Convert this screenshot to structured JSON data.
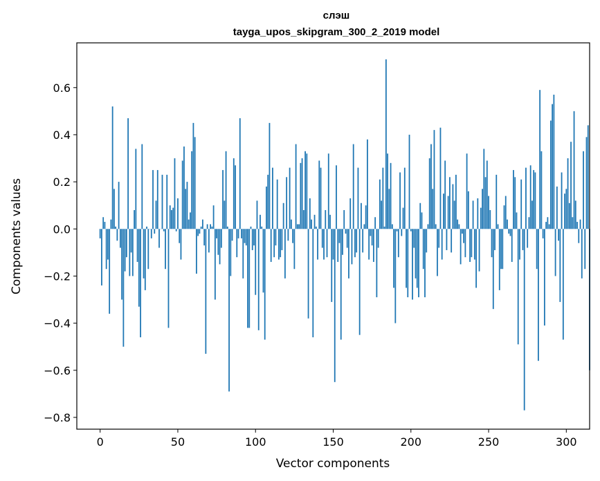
{
  "chart_data": {
    "type": "bar",
    "title": "слэш",
    "subtitle": "tayga_upos_skipgram_300_2_2019 model",
    "xlabel": "Vector components",
    "ylabel": "Components values",
    "xlim": [
      -15,
      315
    ],
    "ylim": [
      -0.85,
      0.79
    ],
    "xticks": [
      0,
      50,
      100,
      150,
      200,
      250,
      300
    ],
    "xtick_labels": [
      "0",
      "50",
      "100",
      "150",
      "200",
      "250",
      "300"
    ],
    "yticks": [
      -0.8,
      -0.6,
      -0.4,
      -0.2,
      0.0,
      0.2,
      0.4,
      0.6
    ],
    "ytick_labels": [
      "−0.8",
      "−0.6",
      "−0.4",
      "−0.2",
      "0.0",
      "0.2",
      "0.4",
      "0.6"
    ],
    "bar_color": "#1f77b4",
    "values": [
      -0.04,
      -0.24,
      0.05,
      0.03,
      -0.17,
      -0.13,
      -0.36,
      0.04,
      0.52,
      0.17,
      0.01,
      -0.05,
      0.2,
      -0.08,
      -0.3,
      -0.5,
      -0.18,
      -0.12,
      0.47,
      -0.2,
      -0.1,
      -0.2,
      0.08,
      0.34,
      -0.14,
      -0.33,
      -0.46,
      0.36,
      -0.21,
      -0.26,
      0.01,
      -0.17,
      0.0,
      -0.04,
      0.25,
      -0.02,
      0.12,
      0.25,
      -0.08,
      0.0,
      0.23,
      -0.01,
      -0.17,
      0.23,
      -0.42,
      0.1,
      0.08,
      0.09,
      0.3,
      -0.01,
      0.13,
      -0.06,
      -0.13,
      0.29,
      0.35,
      0.17,
      0.2,
      0.04,
      0.07,
      0.33,
      0.45,
      0.39,
      -0.19,
      -0.03,
      -0.02,
      0.01,
      0.04,
      -0.07,
      -0.53,
      0.02,
      -0.1,
      0.02,
      0.01,
      0.1,
      -0.3,
      -0.04,
      -0.11,
      -0.15,
      -0.08,
      0.25,
      0.12,
      0.33,
      0.01,
      -0.69,
      -0.2,
      -0.05,
      0.3,
      0.27,
      -0.12,
      -0.04,
      0.47,
      -0.04,
      -0.21,
      -0.06,
      -0.07,
      -0.42,
      -0.42,
      0.01,
      -0.09,
      -0.07,
      -0.28,
      0.12,
      -0.43,
      0.06,
      0.01,
      -0.27,
      -0.47,
      0.18,
      0.23,
      0.45,
      -0.14,
      0.26,
      -0.12,
      -0.07,
      0.21,
      -0.13,
      -0.12,
      -0.09,
      0.11,
      -0.21,
      0.22,
      -0.05,
      0.26,
      0.04,
      -0.06,
      -0.17,
      0.36,
      0.02,
      0.02,
      0.28,
      0.3,
      0.08,
      0.33,
      0.32,
      -0.38,
      0.13,
      0.04,
      -0.46,
      0.06,
      0.01,
      -0.13,
      0.29,
      0.26,
      -0.08,
      -0.13,
      0.08,
      -0.12,
      0.32,
      0.06,
      -0.31,
      -0.13,
      -0.65,
      0.27,
      -0.14,
      -0.06,
      -0.47,
      -0.11,
      0.08,
      -0.02,
      -0.08,
      -0.21,
      0.13,
      -0.15,
      0.36,
      -0.12,
      -0.1,
      0.26,
      -0.45,
      0.11,
      -0.1,
      0.02,
      0.1,
      0.38,
      -0.13,
      -0.03,
      -0.07,
      -0.14,
      0.05,
      -0.29,
      -0.08,
      0.21,
      0.12,
      0.26,
      0.01,
      0.72,
      0.32,
      0.17,
      0.28,
      0.02,
      -0.25,
      -0.4,
      -0.01,
      -0.12,
      0.24,
      -0.03,
      0.09,
      0.26,
      -0.25,
      -0.29,
      0.4,
      -0.01,
      -0.3,
      -0.08,
      -0.21,
      -0.25,
      -0.29,
      0.11,
      0.07,
      -0.17,
      -0.29,
      -0.1,
      0.02,
      0.3,
      0.36,
      0.17,
      0.42,
      0.02,
      -0.2,
      -0.08,
      0.43,
      -0.13,
      0.15,
      0.29,
      -0.09,
      0.14,
      0.22,
      -0.1,
      0.19,
      0.12,
      0.23,
      0.04,
      0.02,
      -0.15,
      -0.02,
      -0.06,
      -0.12,
      0.32,
      0.16,
      -0.14,
      -0.12,
      0.12,
      -0.13,
      -0.25,
      0.13,
      -0.18,
      0.09,
      0.17,
      0.34,
      0.22,
      0.29,
      0.14,
      0.08,
      -0.12,
      -0.34,
      -0.09,
      0.23,
      0.02,
      -0.26,
      -0.17,
      -0.17,
      0.1,
      0.14,
      0.04,
      -0.02,
      -0.03,
      -0.14,
      0.25,
      0.22,
      0.07,
      -0.49,
      -0.13,
      0.21,
      -0.09,
      -0.77,
      0.26,
      -0.08,
      0.05,
      0.27,
      0.12,
      0.25,
      0.24,
      -0.17,
      -0.56,
      0.59,
      0.33,
      -0.04,
      -0.41,
      0.03,
      0.05,
      0.02,
      0.46,
      0.53,
      0.57,
      -0.2,
      0.18,
      -0.05,
      -0.31,
      0.24,
      -0.47,
      0.15,
      0.17,
      0.3,
      0.11,
      0.37,
      0.05,
      0.5,
      0.12,
      0.03,
      -0.06,
      0.04,
      -0.21,
      0.33,
      -0.17,
      0.39,
      0.44,
      -0.6
    ]
  }
}
